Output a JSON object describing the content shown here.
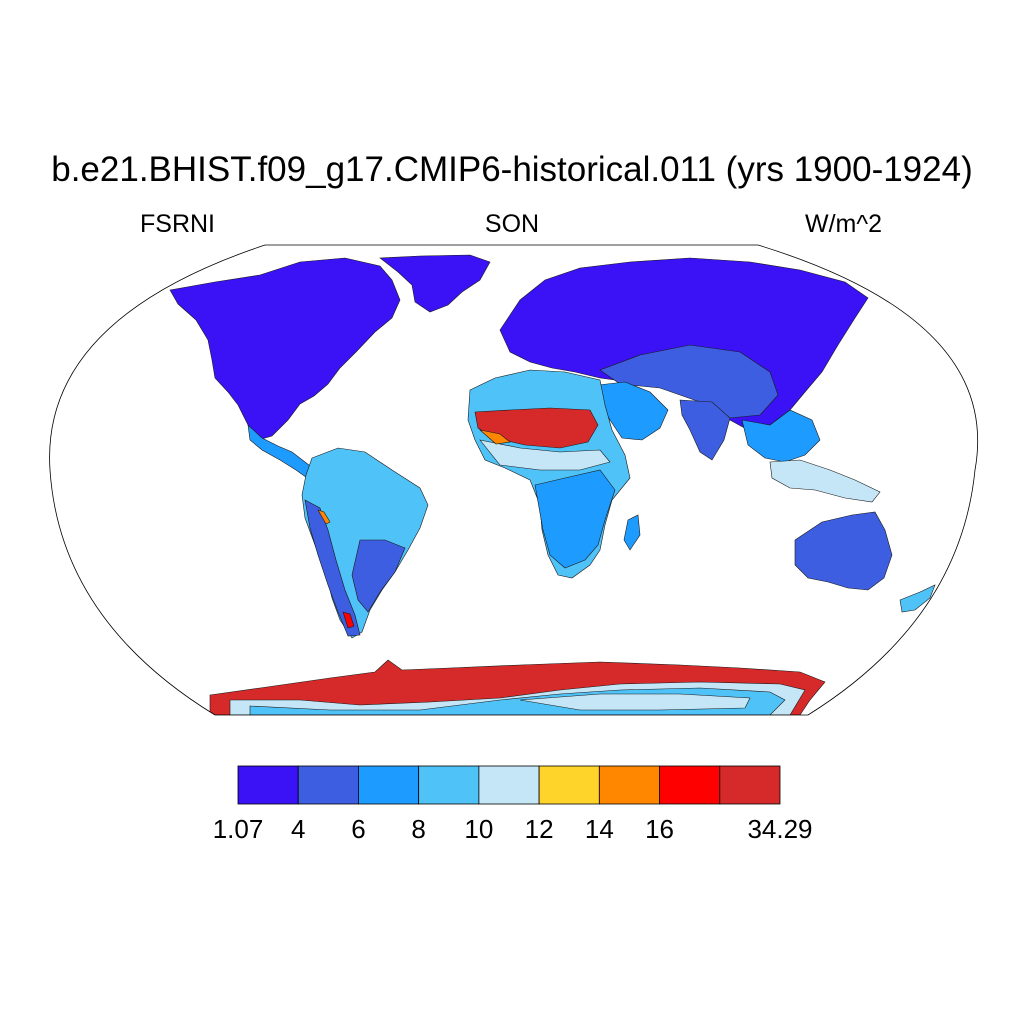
{
  "title": "b.e21.BHIST.f09_g17.CMIP6-historical.011 (yrs 1900-1924)",
  "left_string": "FSRNI",
  "center_string": "SON",
  "right_string": "W/m^2",
  "map": {
    "projection": "Robinson",
    "coastlines": true,
    "field_regions": [
      {
        "name": "North America",
        "level": 0
      },
      {
        "name": "Greenland",
        "level": 0
      },
      {
        "name": "Central America",
        "level": 2
      },
      {
        "name": "South America",
        "level": 3
      },
      {
        "name": "Andes",
        "level": 1
      },
      {
        "name": "Patagonia",
        "level": 1
      },
      {
        "name": "Europe",
        "level": 0
      },
      {
        "name": "Northern Asia",
        "level": 0
      },
      {
        "name": "Central Asia",
        "level": 1
      },
      {
        "name": "Sahara",
        "level": 3
      },
      {
        "name": "Central Sahara",
        "level": 8
      },
      {
        "name": "Sahel",
        "level": 4
      },
      {
        "name": "Central Africa",
        "level": 2
      },
      {
        "name": "Southern Africa",
        "level": 1
      },
      {
        "name": "Arabia",
        "level": 2
      },
      {
        "name": "India",
        "level": 1
      },
      {
        "name": "Southeast Asia",
        "level": 2
      },
      {
        "name": "Maritime Continent",
        "level": 4
      },
      {
        "name": "Australia",
        "level": 1
      },
      {
        "name": "Antarctic coast",
        "level": 8
      },
      {
        "name": "Antarctic plateau",
        "level": 3
      }
    ]
  },
  "colorbar": {
    "colors": [
      "#3a12f5",
      "#3d5ee0",
      "#1e9bff",
      "#4fc2f7",
      "#c4e6f7",
      "#ffd42a",
      "#ff8700",
      "#ff0000",
      "#d62a2a"
    ],
    "labels": [
      "1.07",
      "4",
      "6",
      "8",
      "10",
      "12",
      "14",
      "16",
      "34.29"
    ],
    "min": 1.07,
    "max": 34.29
  }
}
